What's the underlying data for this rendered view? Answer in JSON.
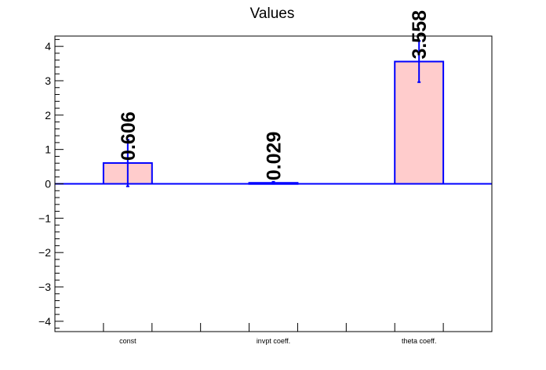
{
  "chart_data": {
    "type": "bar",
    "title": "Values",
    "categories": [
      "const",
      "invpt coeff.",
      "theta coeff."
    ],
    "values": [
      0.606,
      0.029,
      3.558
    ],
    "errors": [
      0.68,
      0.03,
      0.6
    ],
    "value_labels": [
      "0.606",
      "0.029",
      "3.558"
    ],
    "ylim": [
      -4.3,
      4.3
    ],
    "yticks": [
      -4,
      -3,
      -2,
      -1,
      0,
      1,
      2,
      3,
      4
    ],
    "ytick_labels": [
      "−4",
      "−3",
      "−2",
      "−1",
      "0",
      "1",
      "2",
      "3",
      "4"
    ],
    "xlabel": "",
    "ylabel": "",
    "grid": false,
    "colors": {
      "bar_fill": "#ffcccc",
      "bar_edge": "#0000ff",
      "error_bar": "#0000ff",
      "zero_line": "#0000ff",
      "axis": "#000000",
      "text": "#000000"
    }
  }
}
